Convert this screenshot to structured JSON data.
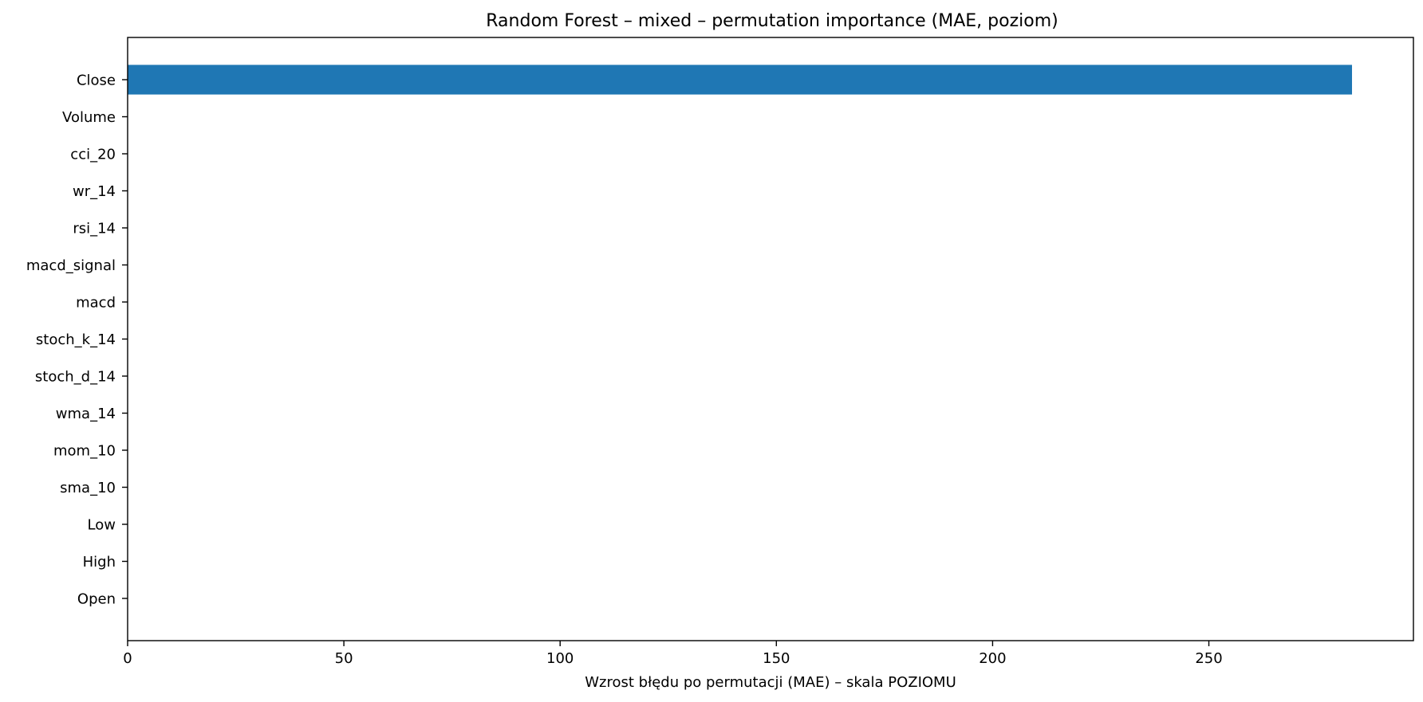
{
  "chart_data": {
    "type": "bar",
    "orientation": "horizontal",
    "title": "Random Forest – mixed – permutation importance (MAE, poziom)",
    "xlabel": "Wzrost błędu po permutacji (MAE) – skala POZIOMU",
    "ylabel": "",
    "categories": [
      "Close",
      "Volume",
      "cci_20",
      "wr_14",
      "rsi_14",
      "macd_signal",
      "macd",
      "stoch_k_14",
      "stoch_d_14",
      "wma_14",
      "mom_10",
      "sma_10",
      "Low",
      "High",
      "Open"
    ],
    "values": [
      283.1,
      0,
      0,
      0,
      0,
      0,
      0,
      0,
      0,
      0,
      0,
      0,
      0,
      0,
      0
    ],
    "xlim": [
      0,
      297.3
    ],
    "xticks": [
      0,
      50,
      100,
      150,
      200,
      250
    ],
    "bar_color": "#1f77b4",
    "grid": false,
    "legend": false
  }
}
